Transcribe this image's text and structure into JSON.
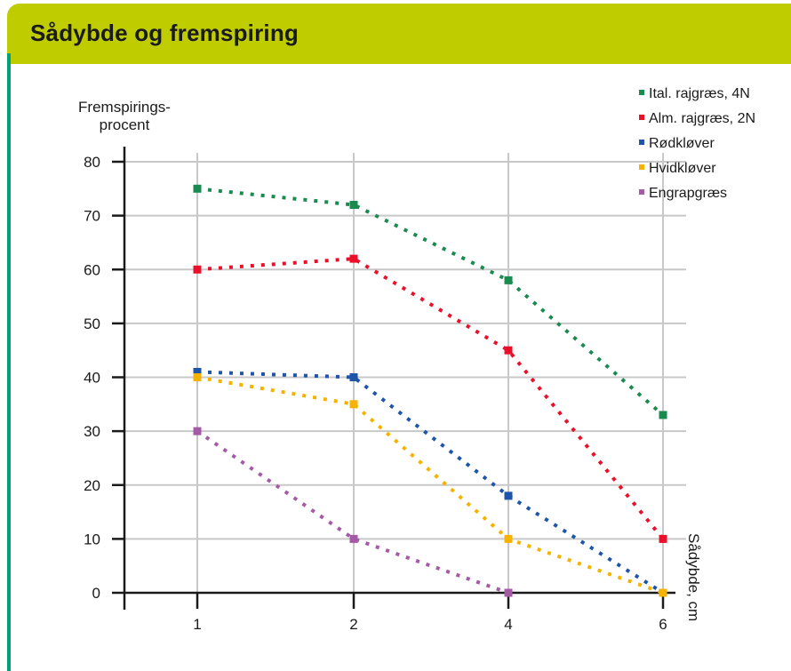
{
  "header": {
    "title": "Sådybde og fremspiring"
  },
  "chart_data": {
    "type": "line",
    "title": "",
    "ylabel_line1": "Fremspirings-",
    "ylabel_line2": "procent",
    "xlabel": "Sådybde, cm",
    "x": [
      1,
      2,
      4,
      6
    ],
    "x_tick_labels": [
      "1",
      "2",
      "4",
      "6"
    ],
    "ylim": [
      0,
      80
    ],
    "y_ticks": [
      0,
      10,
      20,
      30,
      40,
      50,
      60,
      70,
      80
    ],
    "y_tick_labels": [
      "0",
      "10",
      "20",
      "30",
      "40",
      "50",
      "60",
      "70",
      "80"
    ],
    "grid": true,
    "legend_position": "top-right",
    "line_style": "dotted",
    "series": [
      {
        "name": "Ital. rajgræs, 4N",
        "color": "#1a8a50",
        "values": [
          75,
          72,
          58,
          33
        ]
      },
      {
        "name": "Alm. rajgræs, 2N",
        "color": "#e8102a",
        "values": [
          60,
          62,
          45,
          10
        ]
      },
      {
        "name": "Rødkløver",
        "color": "#1f55a8",
        "values": [
          41,
          40,
          18,
          0
        ]
      },
      {
        "name": "Hvidkløver",
        "color": "#f5b300",
        "values": [
          40,
          35,
          10,
          0
        ]
      },
      {
        "name": "Engrapgræs",
        "color": "#a55aa5",
        "values": [
          30,
          10,
          0,
          null
        ]
      }
    ]
  }
}
